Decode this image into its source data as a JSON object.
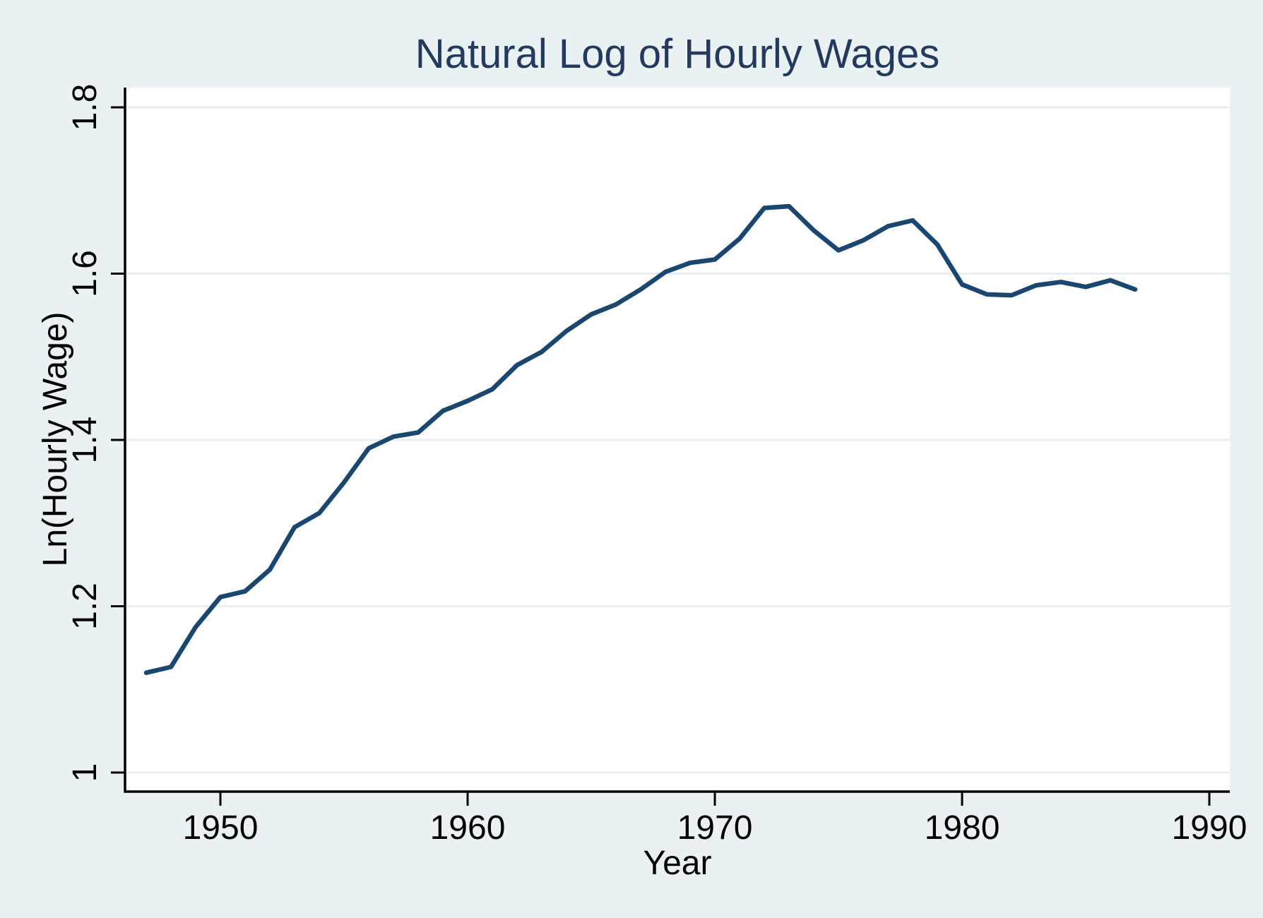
{
  "chart_data": {
    "type": "line",
    "title": "Natural Log of Hourly Wages",
    "xlabel": "Year",
    "ylabel": "Ln(Hourly Wage)",
    "legend": "none",
    "grid": "horizontal",
    "xlim": [
      1946.1,
      1990.8
    ],
    "ylim": [
      0.98,
      1.82
    ],
    "xtick_values": [
      1950,
      1960,
      1970,
      1980,
      1990
    ],
    "xtick_labels": [
      "1950",
      "1960",
      "1970",
      "1980",
      "1990"
    ],
    "ytick_values": [
      1,
      1.2,
      1.4,
      1.6,
      1.8
    ],
    "ytick_labels": [
      "1",
      "1.2",
      "1.4",
      "1.6",
      "1.8"
    ],
    "x": [
      1947,
      1948,
      1949,
      1950,
      1951,
      1952,
      1953,
      1954,
      1955,
      1956,
      1957,
      1958,
      1959,
      1960,
      1961,
      1962,
      1963,
      1964,
      1965,
      1966,
      1967,
      1968,
      1969,
      1970,
      1971,
      1972,
      1973,
      1974,
      1975,
      1976,
      1977,
      1978,
      1979,
      1980,
      1981,
      1982,
      1983,
      1984,
      1985,
      1986,
      1987
    ],
    "series": [
      {
        "name": "Ln(Hourly Wage)",
        "values": [
          1.12,
          1.127,
          1.175,
          1.211,
          1.218,
          1.244,
          1.295,
          1.312,
          1.349,
          1.39,
          1.404,
          1.409,
          1.435,
          1.447,
          1.461,
          1.49,
          1.506,
          1.531,
          1.551,
          1.563,
          1.581,
          1.602,
          1.613,
          1.617,
          1.642,
          1.679,
          1.681,
          1.652,
          1.628,
          1.64,
          1.657,
          1.664,
          1.635,
          1.587,
          1.575,
          1.574,
          1.586,
          1.59,
          1.584,
          1.592,
          1.581
        ]
      }
    ]
  },
  "colors": {
    "background": "#eaf1f3",
    "plot_background": "#ffffff",
    "gridline": "#e7eff2",
    "axis": "#000000",
    "series_line": "#1a476f",
    "title_text": "#233a5e",
    "label_text": "#000000"
  }
}
